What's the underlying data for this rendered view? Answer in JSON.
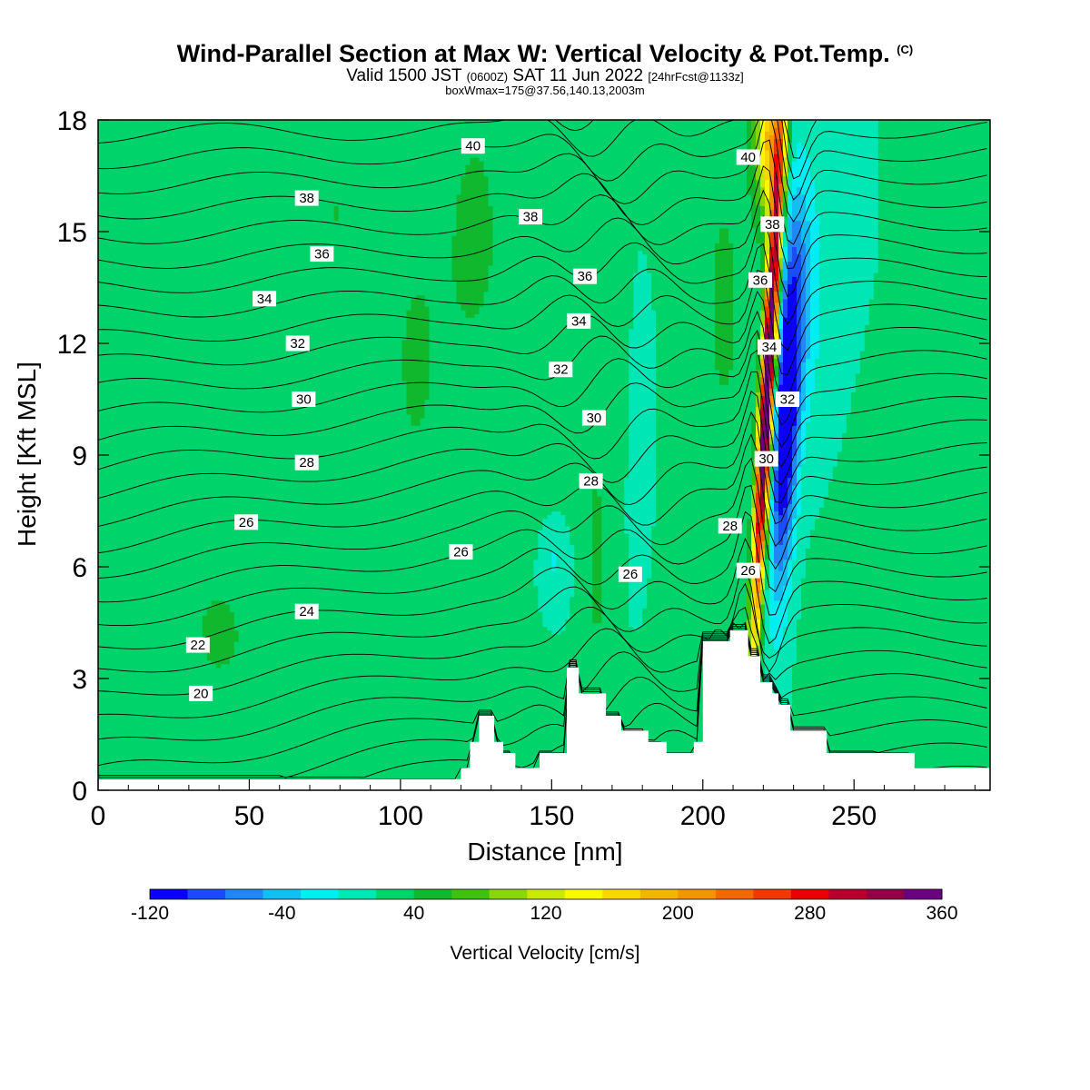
{
  "title": {
    "main": "Wind-Parallel Section at Max W: Vertical Velocity & Pot.Temp.",
    "copyright": "(C)",
    "valid_prefix": "Valid 1500 JST",
    "valid_utc": "(0600Z)",
    "valid_date": "SAT 11 Jun 2022",
    "forecast": "[24hrFcst@1133z]",
    "boxline": "boxWmax=175@37.56,140.13,2003m"
  },
  "colors": {
    "background_field": "#00e6b4",
    "terrain": "#ffffff",
    "contour": "#000000"
  },
  "chart_data": {
    "type": "heatmap",
    "xlabel": "Distance [nm]",
    "ylabel": "Height [Kft MSL]",
    "xlim": [
      0,
      295
    ],
    "ylim": [
      0,
      18
    ],
    "xticks": [
      0,
      50,
      100,
      150,
      200,
      250
    ],
    "yticks": [
      0,
      3,
      6,
      9,
      12,
      15,
      18
    ],
    "colorbar": {
      "label": "Vertical Velocity [cm/s]",
      "min": -120,
      "max": 360,
      "step": 20,
      "tick_labels": [
        "-120",
        "-40",
        "40",
        "120",
        "200",
        "280",
        "360"
      ],
      "colors": [
        "#0a00f5",
        "#1a4cf7",
        "#1f88f5",
        "#14bdf2",
        "#00eef2",
        "#00e6b4",
        "#00d36a",
        "#10b82e",
        "#3fc20e",
        "#8ad60c",
        "#c8e70c",
        "#f8f800",
        "#f8d800",
        "#f5b400",
        "#f39400",
        "#f06a00",
        "#ec3a00",
        "#e60000",
        "#b8002e",
        "#920046",
        "#6a0080"
      ]
    },
    "terrain_profile": {
      "x": [
        0,
        120,
        120,
        123,
        123,
        126,
        126,
        131,
        131,
        134,
        134,
        138,
        138,
        146,
        146,
        155,
        155,
        159,
        159,
        168,
        168,
        173,
        173,
        182,
        182,
        188,
        188,
        197,
        197,
        200,
        200,
        209,
        209,
        215,
        215,
        219,
        219,
        223,
        223,
        225,
        225,
        229,
        229,
        241,
        241,
        266,
        266,
        270,
        270,
        279,
        279,
        295
      ],
      "height": [
        0.3,
        0.3,
        0.6,
        0.6,
        1.3,
        1.3,
        2.0,
        2.0,
        1.3,
        1.3,
        1.0,
        1.0,
        0.6,
        0.6,
        1.0,
        1.0,
        3.3,
        3.3,
        2.6,
        2.6,
        2.0,
        2.0,
        1.6,
        1.6,
        1.3,
        1.3,
        1.0,
        1.0,
        1.3,
        1.3,
        4.0,
        4.0,
        4.3,
        4.3,
        3.6,
        3.6,
        2.9,
        2.9,
        2.6,
        2.6,
        2.3,
        2.3,
        1.6,
        1.6,
        1.0,
        1.0,
        1.0,
        1.0,
        0.6,
        0.6,
        0.6,
        0.6
      ]
    },
    "contour_labels": [
      {
        "text": "40",
        "x": 124,
        "y": 17.3
      },
      {
        "text": "40",
        "x": 215,
        "y": 17.0
      },
      {
        "text": "38",
        "x": 69,
        "y": 15.9
      },
      {
        "text": "38",
        "x": 143,
        "y": 15.4
      },
      {
        "text": "38",
        "x": 223,
        "y": 15.2
      },
      {
        "text": "36",
        "x": 74,
        "y": 14.4
      },
      {
        "text": "36",
        "x": 161,
        "y": 13.8
      },
      {
        "text": "36",
        "x": 219,
        "y": 13.7
      },
      {
        "text": "34",
        "x": 55,
        "y": 13.2
      },
      {
        "text": "34",
        "x": 159,
        "y": 12.6
      },
      {
        "text": "34",
        "x": 222,
        "y": 11.9
      },
      {
        "text": "32",
        "x": 66,
        "y": 12.0
      },
      {
        "text": "32",
        "x": 153,
        "y": 11.3
      },
      {
        "text": "32",
        "x": 228,
        "y": 10.5
      },
      {
        "text": "30",
        "x": 68,
        "y": 10.5
      },
      {
        "text": "30",
        "x": 164,
        "y": 10.0
      },
      {
        "text": "30",
        "x": 221,
        "y": 8.9
      },
      {
        "text": "28",
        "x": 69,
        "y": 8.8
      },
      {
        "text": "28",
        "x": 163,
        "y": 8.3
      },
      {
        "text": "28",
        "x": 209,
        "y": 7.1
      },
      {
        "text": "26",
        "x": 49,
        "y": 7.2
      },
      {
        "text": "26",
        "x": 120,
        "y": 6.4
      },
      {
        "text": "26",
        "x": 176,
        "y": 5.8
      },
      {
        "text": "26",
        "x": 215,
        "y": 5.9
      },
      {
        "text": "24",
        "x": 69,
        "y": 4.8
      },
      {
        "text": "22",
        "x": 33,
        "y": 3.9
      },
      {
        "text": "20",
        "x": 34,
        "y": 2.6
      }
    ]
  }
}
